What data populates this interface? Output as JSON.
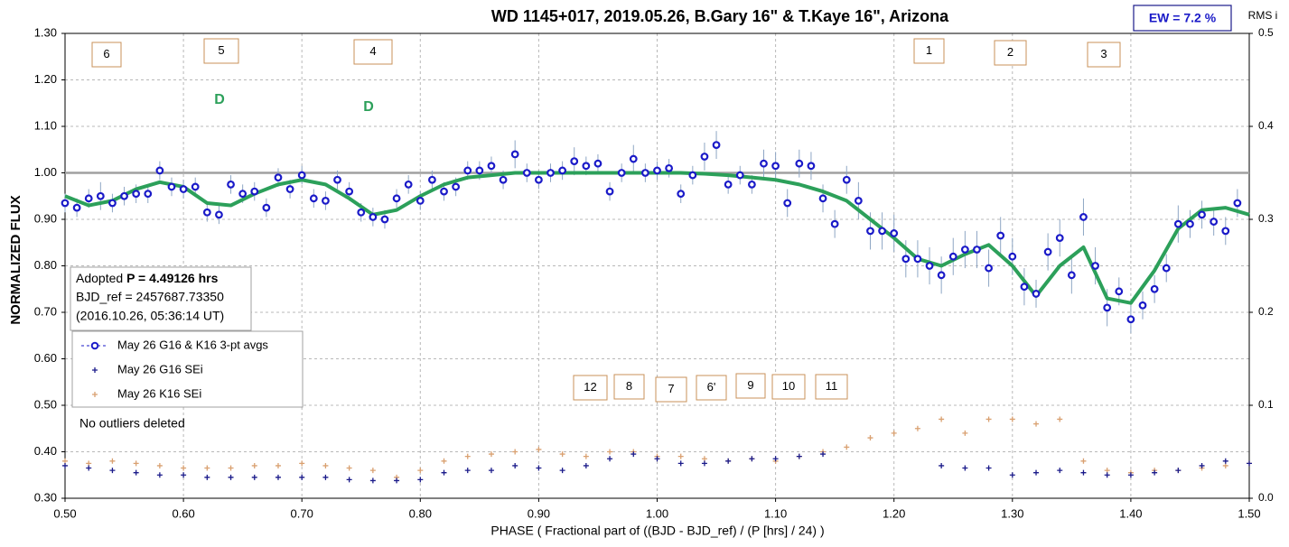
{
  "chart_data": {
    "type": "scatter",
    "title": "WD 1145+017, 2019.05.26, B.Gary 16\" & T.Kaye 16\", Arizona",
    "x_label": "PHASE ( Fractional part of ((BJD - BJD_ref) / (P [hrs] / 24) )",
    "y_label": "NORMALIZED FLUX",
    "y2_label": "RMS i",
    "ew_label": "EW =  7.2 %",
    "info": {
      "prefix": "Adopted ",
      "period": "P = 4.49126 hrs",
      "bjd_ref": "BJD_ref = 2457687.73350",
      "date": "(2016.10.26, 05:36:14 UT)"
    },
    "note": "No outliers deleted",
    "annotations": [
      "6",
      "5",
      "4",
      "1",
      "2",
      "3",
      "12",
      "8",
      "7",
      "6'",
      "9",
      "10",
      "11",
      "D",
      "D"
    ],
    "xlim": [
      0.5,
      1.5
    ],
    "ylim": [
      0.3,
      1.3
    ],
    "y2lim": [
      0,
      0.5
    ],
    "xticks": [
      {
        "value": 0.5,
        "label": "0.50"
      },
      {
        "value": 0.6,
        "label": "0.60"
      },
      {
        "value": 0.7,
        "label": "0.70"
      },
      {
        "value": 0.8,
        "label": "0.80"
      },
      {
        "value": 0.9,
        "label": "0.90"
      },
      {
        "value": 1.0,
        "label": "1.00"
      },
      {
        "value": 1.1,
        "label": "1.10"
      },
      {
        "value": 1.2,
        "label": "1.20"
      },
      {
        "value": 1.3,
        "label": "1.30"
      },
      {
        "value": 1.4,
        "label": "1.40"
      },
      {
        "value": 1.5,
        "label": "1.50"
      }
    ],
    "yticks": [
      {
        "value": 0.3,
        "label": "0.30"
      },
      {
        "value": 0.4,
        "label": "0.40"
      },
      {
        "value": 0.5,
        "label": "0.50"
      },
      {
        "value": 0.6,
        "label": "0.60"
      },
      {
        "value": 0.7,
        "label": "0.70"
      },
      {
        "value": 0.8,
        "label": "0.80"
      },
      {
        "value": 0.9,
        "label": "0.90"
      },
      {
        "value": 1.0,
        "label": "1.00"
      },
      {
        "value": 1.1,
        "label": "1.10"
      },
      {
        "value": 1.2,
        "label": "1.20"
      },
      {
        "value": 1.3,
        "label": "1.30"
      }
    ],
    "y2ticks": [
      {
        "value": 0,
        "label": "0.0"
      },
      0.1,
      0.2,
      0.3,
      0.4,
      0.5
    ],
    "grid": true,
    "reference_level": 1.0,
    "series": [
      {
        "name": "May 26 G16 & K16 3-pt avgs",
        "color": "#1a1ac8",
        "x": [
          0.5,
          0.51,
          0.52,
          0.53,
          0.54,
          0.55,
          0.56,
          0.57,
          0.58,
          0.59,
          0.6,
          0.61,
          0.62,
          0.63,
          0.64,
          0.65,
          0.66,
          0.67,
          0.68,
          0.69,
          0.7,
          0.71,
          0.72,
          0.73,
          0.74,
          0.75,
          0.76,
          0.77,
          0.78,
          0.79,
          0.8,
          0.81,
          0.82,
          0.83,
          0.84,
          0.85,
          0.86,
          0.87,
          0.88,
          0.89,
          0.9,
          0.91,
          0.92,
          0.93,
          0.94,
          0.95,
          0.96,
          0.97,
          0.98,
          0.99,
          1.0,
          1.01,
          1.02,
          1.03,
          1.04,
          1.05,
          1.06,
          1.07,
          1.08,
          1.09,
          1.1,
          1.11,
          1.12,
          1.13,
          1.14,
          1.15,
          1.16,
          1.17,
          1.18,
          1.19,
          1.2,
          1.21,
          1.22,
          1.23,
          1.24,
          1.25,
          1.26,
          1.27,
          1.28,
          1.29,
          1.3,
          1.31,
          1.32,
          1.33,
          1.34,
          1.35,
          1.36,
          1.37,
          1.38,
          1.39,
          1.4,
          1.41,
          1.42,
          1.43,
          1.44,
          1.45,
          1.46,
          1.47,
          1.48,
          1.49
        ],
        "values": [
          0.935,
          0.925,
          0.945,
          0.95,
          0.935,
          0.95,
          0.955,
          0.955,
          1.005,
          0.97,
          0.965,
          0.97,
          0.915,
          0.91,
          0.975,
          0.955,
          0.96,
          0.925,
          0.99,
          0.965,
          0.995,
          0.945,
          0.94,
          0.985,
          0.96,
          0.915,
          0.905,
          0.9,
          0.945,
          0.975,
          0.94,
          0.985,
          0.96,
          0.97,
          1.005,
          1.005,
          1.015,
          0.985,
          1.04,
          1.0,
          0.985,
          1.0,
          1.005,
          1.025,
          1.015,
          1.02,
          0.96,
          1.0,
          1.03,
          1.0,
          1.005,
          1.01,
          0.955,
          0.995,
          1.035,
          1.06,
          0.975,
          0.995,
          0.975,
          1.02,
          1.015,
          0.935,
          1.02,
          1.015,
          0.945,
          0.89,
          0.985,
          0.94,
          0.875,
          0.875,
          0.87,
          0.815,
          0.815,
          0.8,
          0.78,
          0.82,
          0.835,
          0.835,
          0.795,
          0.865,
          0.82,
          0.755,
          0.74,
          0.83,
          0.86,
          0.78,
          0.905,
          0.8,
          0.71,
          0.745,
          0.685,
          0.715,
          0.75,
          0.795,
          0.89,
          0.89,
          0.91,
          0.895,
          0.875,
          0.935
        ],
        "errors": [
          0.02,
          0.02,
          0.02,
          0.03,
          0.02,
          0.02,
          0.02,
          0.02,
          0.02,
          0.02,
          0.02,
          0.02,
          0.02,
          0.02,
          0.02,
          0.02,
          0.02,
          0.02,
          0.02,
          0.02,
          0.02,
          0.02,
          0.02,
          0.02,
          0.02,
          0.02,
          0.02,
          0.02,
          0.02,
          0.02,
          0.02,
          0.02,
          0.02,
          0.02,
          0.02,
          0.02,
          0.02,
          0.02,
          0.03,
          0.02,
          0.02,
          0.02,
          0.02,
          0.03,
          0.02,
          0.02,
          0.02,
          0.02,
          0.03,
          0.02,
          0.02,
          0.02,
          0.02,
          0.02,
          0.03,
          0.03,
          0.02,
          0.02,
          0.02,
          0.03,
          0.03,
          0.03,
          0.03,
          0.03,
          0.03,
          0.03,
          0.03,
          0.04,
          0.04,
          0.04,
          0.04,
          0.04,
          0.04,
          0.04,
          0.04,
          0.04,
          0.04,
          0.04,
          0.04,
          0.04,
          0.04,
          0.04,
          0.03,
          0.04,
          0.04,
          0.04,
          0.04,
          0.04,
          0.04,
          0.03,
          0.03,
          0.03,
          0.03,
          0.03,
          0.04,
          0.03,
          0.03,
          0.03,
          0.03,
          0.03
        ]
      },
      {
        "name": "May 26 G16 SEi",
        "color": "#1a1a8a",
        "x": [
          0.5,
          0.52,
          0.54,
          0.56,
          0.58,
          0.6,
          0.62,
          0.64,
          0.66,
          0.68,
          0.7,
          0.72,
          0.74,
          0.76,
          0.78,
          0.8,
          0.82,
          0.84,
          0.86,
          0.88,
          0.9,
          0.92,
          0.94,
          0.96,
          0.98,
          1.0,
          1.02,
          1.04,
          1.06,
          1.08,
          1.1,
          1.12,
          1.14,
          1.16,
          1.18,
          1.2,
          1.22,
          1.24,
          1.26,
          1.28,
          1.3,
          1.32,
          1.34,
          1.36,
          1.38,
          1.4,
          1.42,
          1.44,
          1.46,
          1.48,
          1.5
        ],
        "values": [
          0.37,
          0.365,
          0.36,
          0.355,
          0.35,
          0.35,
          0.345,
          0.345,
          0.345,
          0.345,
          0.345,
          0.345,
          0.34,
          0.338,
          0.338,
          0.34,
          0.355,
          0.36,
          0.36,
          0.37,
          0.365,
          0.36,
          0.37,
          0.385,
          0.395,
          0.385,
          0.375,
          0.375,
          0.38,
          0.385,
          0.385,
          0.39,
          0.395,
          null,
          null,
          null,
          null,
          0.37,
          0.365,
          0.365,
          0.35,
          0.355,
          0.36,
          0.355,
          0.35,
          0.35,
          0.355,
          0.36,
          0.37,
          0.38,
          0.375
        ]
      },
      {
        "name": "May 26 K16 SEi",
        "color": "#d9a070",
        "x": [
          0.5,
          0.52,
          0.54,
          0.56,
          0.58,
          0.6,
          0.62,
          0.64,
          0.66,
          0.68,
          0.7,
          0.72,
          0.74,
          0.76,
          0.78,
          0.8,
          0.82,
          0.84,
          0.86,
          0.88,
          0.9,
          0.92,
          0.94,
          0.96,
          0.98,
          1.0,
          1.02,
          1.04,
          1.06,
          1.08,
          1.1,
          1.12,
          1.14,
          1.16,
          1.18,
          1.2,
          1.22,
          1.24,
          1.26,
          1.28,
          1.3,
          1.32,
          1.34,
          1.36,
          1.38,
          1.4,
          1.42,
          1.44,
          1.46,
          1.48,
          1.5
        ],
        "values": [
          0.38,
          0.375,
          0.38,
          0.375,
          0.37,
          0.365,
          0.365,
          0.365,
          0.37,
          0.37,
          0.375,
          0.37,
          0.365,
          0.36,
          0.345,
          0.36,
          0.38,
          0.39,
          0.395,
          0.4,
          0.405,
          0.395,
          0.39,
          0.4,
          0.4,
          0.39,
          0.39,
          0.385,
          0.38,
          0.385,
          0.38,
          0.39,
          0.4,
          0.41,
          0.43,
          0.44,
          0.45,
          0.47,
          0.44,
          0.47,
          0.47,
          0.46,
          0.47,
          0.38,
          0.36,
          0.355,
          0.36,
          0.36,
          0.365,
          0.37,
          0.375
        ]
      }
    ],
    "fit": {
      "color": "#2ca05a",
      "x": [
        0.5,
        0.52,
        0.54,
        0.56,
        0.58,
        0.6,
        0.62,
        0.64,
        0.66,
        0.68,
        0.7,
        0.72,
        0.74,
        0.76,
        0.78,
        0.8,
        0.82,
        0.84,
        0.86,
        0.88,
        0.9,
        0.92,
        0.94,
        0.96,
        0.98,
        1.0,
        1.02,
        1.04,
        1.06,
        1.08,
        1.1,
        1.12,
        1.14,
        1.16,
        1.18,
        1.2,
        1.22,
        1.24,
        1.26,
        1.28,
        1.3,
        1.32,
        1.34,
        1.36,
        1.38,
        1.4,
        1.42,
        1.44,
        1.46,
        1.48,
        1.5
      ],
      "values": [
        0.95,
        0.93,
        0.94,
        0.965,
        0.98,
        0.97,
        0.935,
        0.93,
        0.955,
        0.975,
        0.985,
        0.975,
        0.945,
        0.91,
        0.92,
        0.95,
        0.975,
        0.99,
        0.995,
        1.0,
        1.0,
        1.0,
        1.0,
        1.0,
        1.0,
        1.0,
        1.0,
        0.998,
        0.995,
        0.99,
        0.985,
        0.975,
        0.96,
        0.94,
        0.9,
        0.86,
        0.815,
        0.8,
        0.825,
        0.845,
        0.8,
        0.735,
        0.8,
        0.84,
        0.73,
        0.72,
        0.79,
        0.88,
        0.92,
        0.925,
        0.91
      ]
    }
  }
}
